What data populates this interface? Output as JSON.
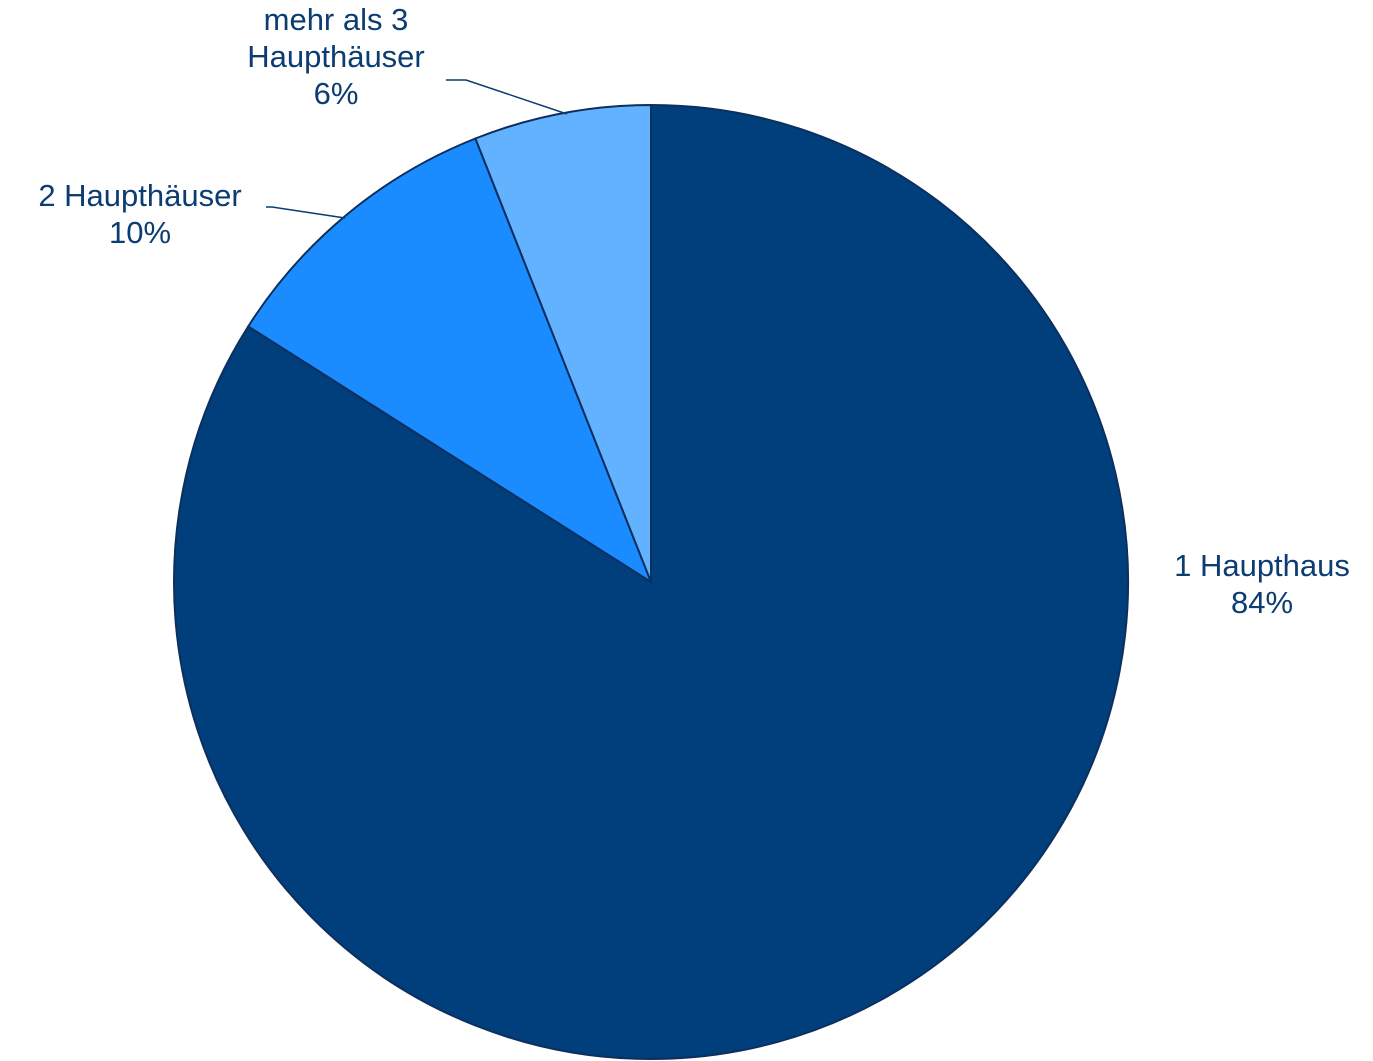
{
  "chart_data": {
    "type": "pie",
    "title": "",
    "slices": [
      {
        "label_lines": [
          "1 Haupthaus"
        ],
        "percent_label": "84%",
        "value": 84,
        "color": "#003f7b"
      },
      {
        "label_lines": [
          "2 Haupthäuser"
        ],
        "percent_label": "10%",
        "value": 10,
        "color": "#1a8cff"
      },
      {
        "label_lines": [
          "mehr als 3",
          "Haupthäuser"
        ],
        "percent_label": "6%",
        "value": 6,
        "color": "#63b2ff"
      }
    ],
    "start_angle_deg": 0,
    "direction": "clockwise",
    "legend": "none"
  }
}
